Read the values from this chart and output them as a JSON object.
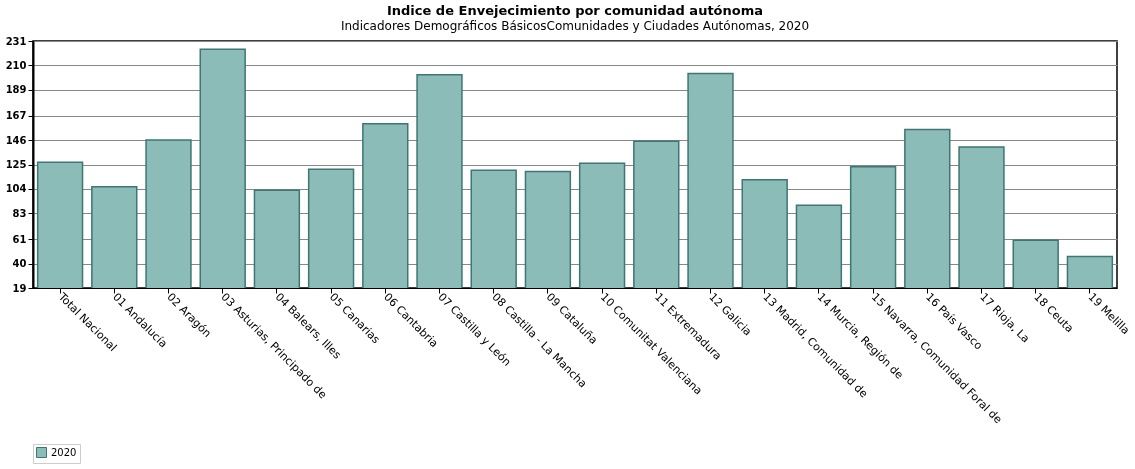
{
  "chart_data": {
    "type": "bar",
    "title": "Indice de Envejecimiento por comunidad autónoma",
    "subtitle": "Indicadores Demográficos BásicosComunidades y Ciudades Autónomas, 2020",
    "categories": [
      "Total Nacional",
      "01 Andalucía",
      "02 Aragón",
      "03 Asturias, Principado de",
      "04 Balears, Illes",
      "05 Canarias",
      "06 Cantabria",
      "07 Castilla y León",
      "08 Castilla - La Mancha",
      "09 Cataluña",
      "10 Comunitat Valenciana",
      "11 Extremadura",
      "12 Galicia",
      "13 Madrid, Comunidad de",
      "14 Murcia, Región de",
      "15 Navarra, Comunidad Foral de",
      "16 País Vasco",
      "17 Rioja, La",
      "18 Ceuta",
      "19 Melilla"
    ],
    "series": [
      {
        "name": "2020",
        "color": "#8bbcb8",
        "values": [
          127,
          106,
          146,
          224,
          103,
          121,
          160,
          202,
          120,
          119,
          126,
          145,
          203,
          112,
          90,
          123,
          155,
          140,
          60,
          46
        ]
      }
    ],
    "ylim": [
      19,
      231
    ],
    "yticks": [
      19,
      40,
      61,
      83,
      104,
      125,
      146,
      167,
      189,
      210,
      231
    ],
    "grid": "y",
    "legend": "bottom"
  }
}
